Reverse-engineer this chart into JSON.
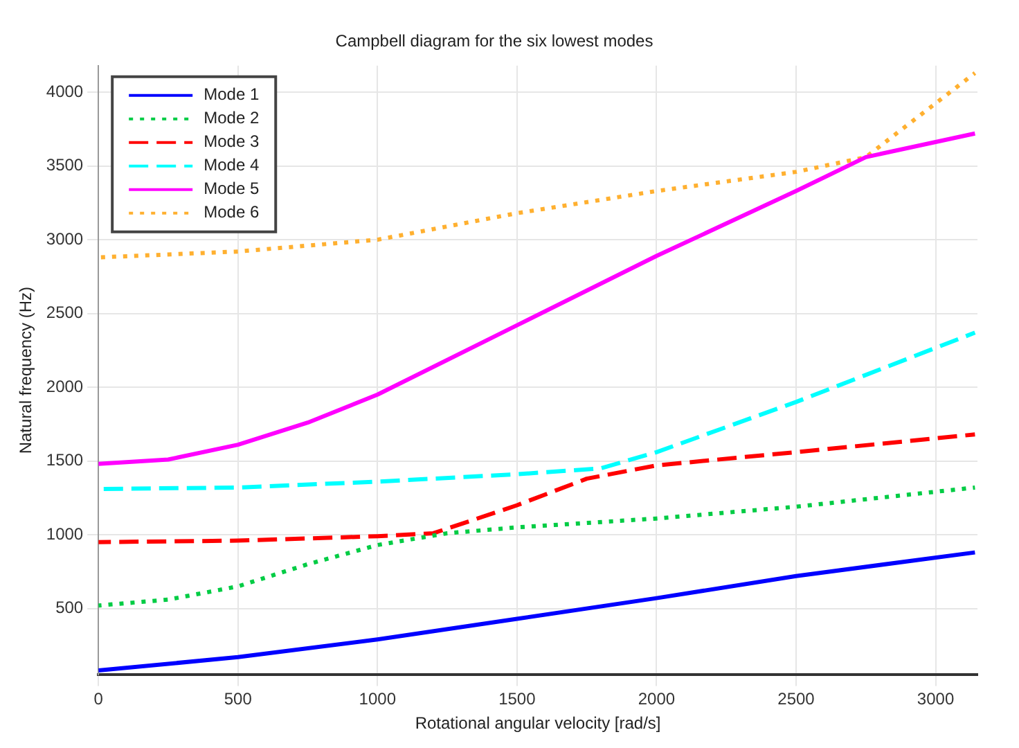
{
  "chart_data": {
    "type": "line",
    "title": "Campbell diagram for the six lowest modes",
    "xlabel": "Rotational angular velocity [rad/s]",
    "ylabel": "Natural frequency (Hz)",
    "xlim": [
      0,
      3150
    ],
    "ylim": [
      50,
      4180
    ],
    "xticks": [
      0,
      500,
      1000,
      1500,
      2000,
      2500,
      3000
    ],
    "yticks": [
      500,
      1000,
      1500,
      2000,
      2500,
      3000,
      3500,
      4000
    ],
    "grid": true,
    "legend": "top left",
    "marker": "none",
    "series": [
      {
        "name": "Mode 1",
        "color": "#0000ff",
        "line_style": "solid",
        "x": [
          0,
          500,
          1000,
          1500,
          2000,
          2500,
          3141
        ],
        "values": [
          80,
          170,
          290,
          430,
          570,
          720,
          880
        ]
      },
      {
        "name": "Mode 2",
        "color": "#00cc44",
        "line_style": "dotted",
        "x": [
          0,
          250,
          500,
          750,
          1000,
          1250,
          1500,
          2000,
          2500,
          3141
        ],
        "values": [
          520,
          560,
          650,
          800,
          930,
          1010,
          1050,
          1110,
          1190,
          1320
        ]
      },
      {
        "name": "Mode 3",
        "color": "#ff0000",
        "line_style": "dashed",
        "x": [
          0,
          500,
          1000,
          1200,
          1500,
          1750,
          2000,
          2500,
          3141
        ],
        "values": [
          950,
          960,
          990,
          1010,
          1200,
          1380,
          1470,
          1560,
          1680
        ]
      },
      {
        "name": "Mode 4",
        "color": "#00ffff",
        "line_style": "dashed",
        "x": [
          0,
          500,
          1000,
          1500,
          1800,
          2000,
          2500,
          3141
        ],
        "values": [
          1310,
          1320,
          1360,
          1410,
          1450,
          1560,
          1900,
          2370
        ]
      },
      {
        "name": "Mode 5",
        "color": "#ff00ff",
        "line_style": "solid",
        "x": [
          0,
          250,
          500,
          750,
          1000,
          1500,
          2000,
          2500,
          2750,
          3141
        ],
        "values": [
          1480,
          1510,
          1610,
          1760,
          1950,
          2420,
          2890,
          3330,
          3560,
          3720
        ]
      },
      {
        "name": "Mode 6",
        "color": "#ffb030",
        "line_style": "dotted",
        "x": [
          0,
          500,
          1000,
          1500,
          2000,
          2500,
          2750,
          3141
        ],
        "values": [
          2880,
          2920,
          3000,
          3180,
          3330,
          3460,
          3560,
          4130
        ]
      }
    ]
  }
}
